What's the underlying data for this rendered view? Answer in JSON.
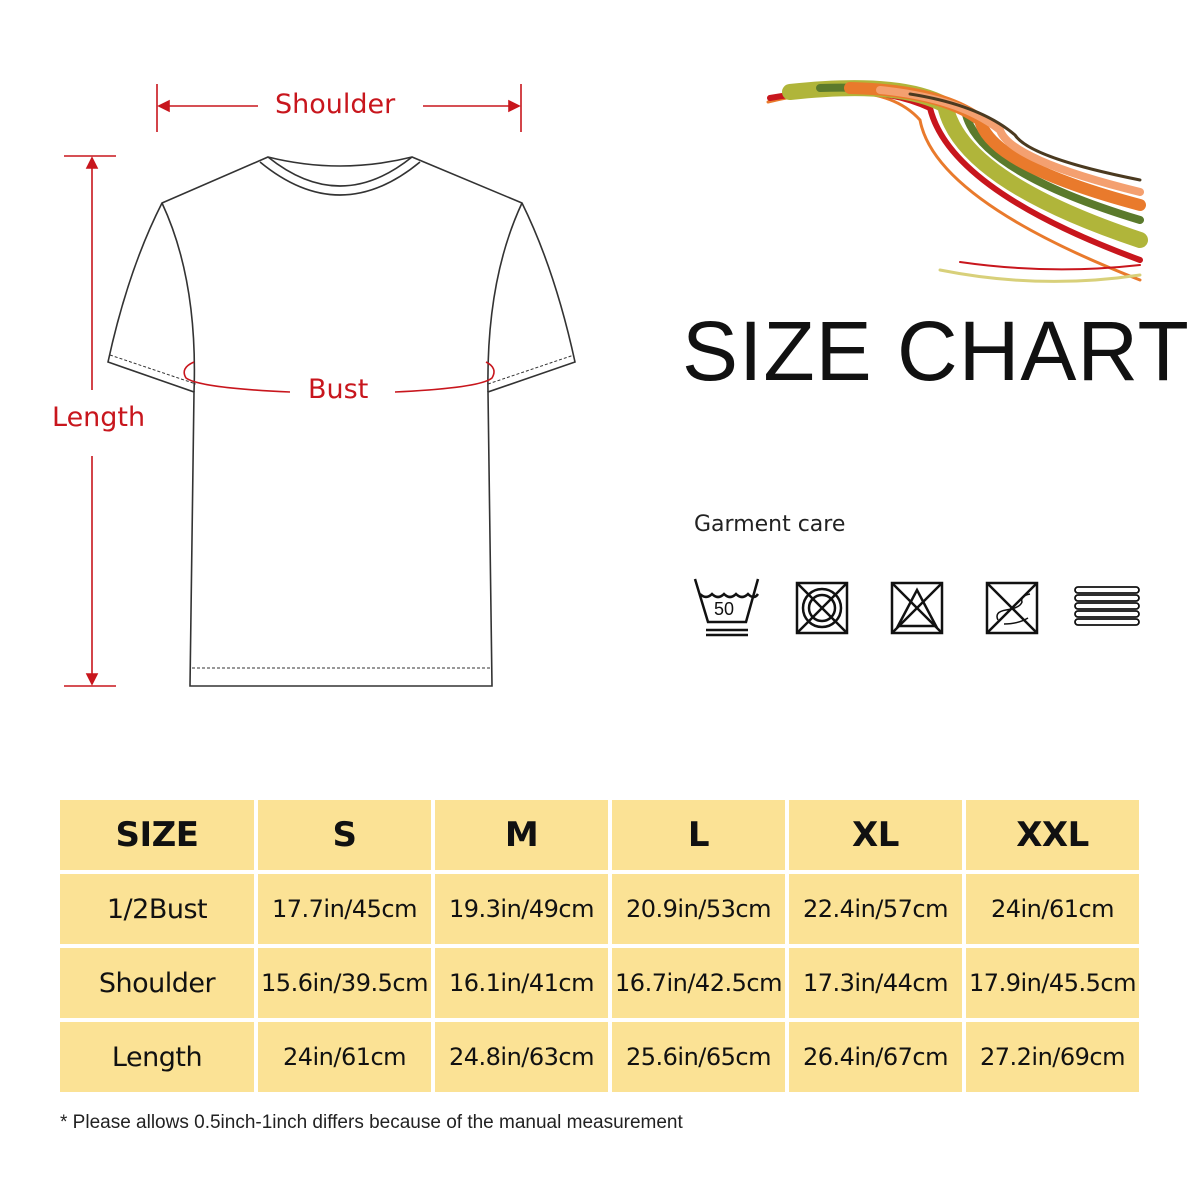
{
  "labels": {
    "shoulder": "Shoulder",
    "bust": "Bust",
    "length": "Length"
  },
  "title": "SIZE CHART",
  "garment_care": {
    "label": "Garment care",
    "icons": [
      "wash-50-gentle-icon",
      "do-not-tumble-dry-icon",
      "do-not-bleach-icon",
      "do-not-dry-clean-icon",
      "dry-flat-icon"
    ],
    "wash_temp": "50"
  },
  "table": {
    "header": [
      "SIZE",
      "S",
      "M",
      "L",
      "XL",
      "XXL"
    ],
    "rows": [
      [
        "1/2Bust",
        "17.7in/45cm",
        "19.3in/49cm",
        "20.9in/53cm",
        "22.4in/57cm",
        "24in/61cm"
      ],
      [
        "Shoulder",
        "15.6in/39.5cm",
        "16.1in/41cm",
        "16.7in/42.5cm",
        "17.3in/44cm",
        "17.9in/45.5cm"
      ],
      [
        "Length",
        "24in/61cm",
        "24.8in/63cm",
        "25.6in/65cm",
        "26.4in/67cm",
        "27.2in/69cm"
      ]
    ]
  },
  "note": "* Please allows 0.5inch-1inch differs because of the manual measurement",
  "colors": {
    "cell": "#fbe295",
    "measure": "#c8161d"
  }
}
